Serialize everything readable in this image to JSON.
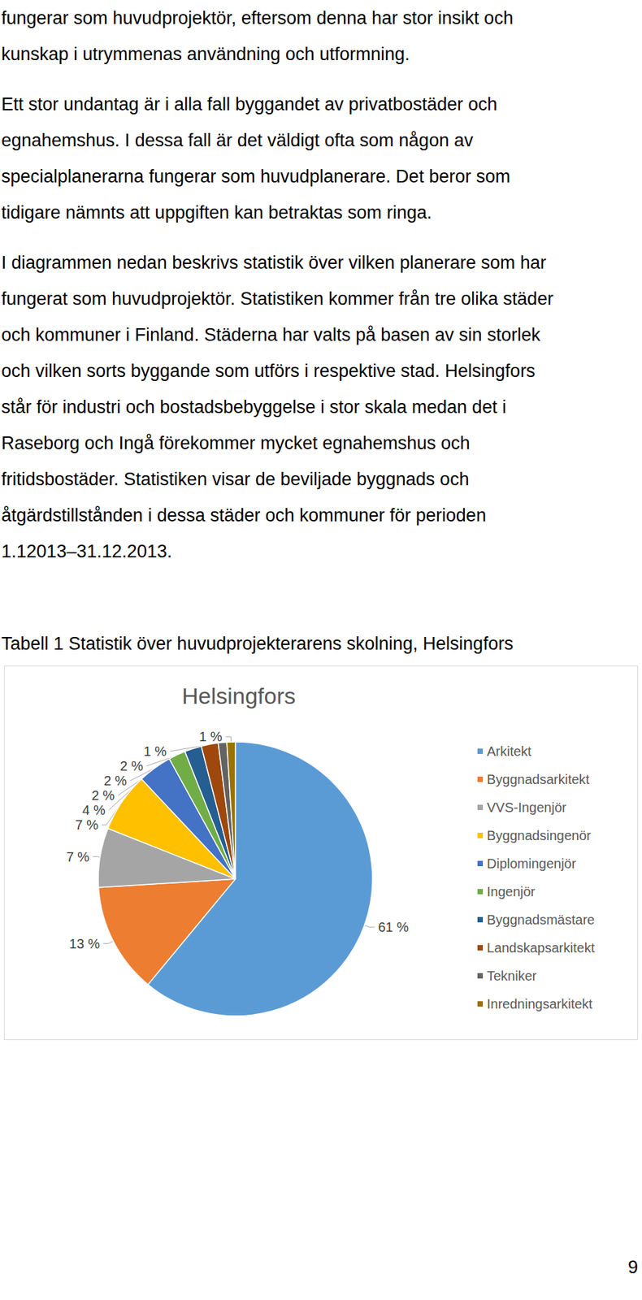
{
  "paragraphs": [
    [
      "fungerar som huvudprojektör, eftersom denna har stor insikt och",
      "kunskap i utrymmenas användning och utformning."
    ],
    [
      "Ett stor undantag är i alla fall byggandet av privatbostäder och",
      "egnahemshus. I dessa fall är det väldigt ofta som någon av",
      "specialplanerarna fungerar som huvudplanerare. Det beror som",
      "tidigare nämnts att uppgiften kan betraktas som ringa."
    ],
    [
      "I diagrammen nedan beskrivs statistik över vilken planerare som har",
      "fungerat som huvudprojektör. Statistiken kommer från tre olika städer",
      "och kommuner i Finland. Städerna har valts på basen av sin storlek",
      "och vilken sorts byggande som utförs i respektive stad. Helsingfors",
      "står för industri och bostadsbebyggelse i stor skala medan det i",
      "Raseborg och Ingå förekommer mycket egnahemshus och",
      "fritidsbostäder. Statistiken visar de beviljade byggnads och",
      "åtgärdstillstånden i dessa städer och kommuner för perioden",
      "1.12013–31.12.2013."
    ]
  ],
  "caption": "Tabell 1 Statistik över huvudprojekterarens skolning, Helsingfors",
  "page_number": "9",
  "chart_data": {
    "type": "pie",
    "title": "Helsingfors",
    "categories": [
      "Arkitekt",
      "Byggnadsarkitekt",
      "VVS-Ingenjör",
      "Byggnadsingenör",
      "Diplomingenjör",
      "Ingenjör",
      "Byggnadsmästare",
      "Landskapsarkitekt",
      "Tekniker",
      "Inredningsarkitekt"
    ],
    "values": [
      61,
      13,
      7,
      7,
      4,
      2,
      2,
      2,
      1,
      1
    ],
    "value_labels": [
      "61 %",
      "13 %",
      "7 %",
      "7 %",
      "4 %",
      "2 %",
      "2 %",
      "2 %",
      "1 %",
      "1 %"
    ],
    "colors": [
      "#5b9bd5",
      "#ed7d31",
      "#a5a5a5",
      "#ffc000",
      "#4472c4",
      "#70ad47",
      "#255e91",
      "#9e480e",
      "#636363",
      "#997300"
    ],
    "legend": "right",
    "data_labels": true
  }
}
